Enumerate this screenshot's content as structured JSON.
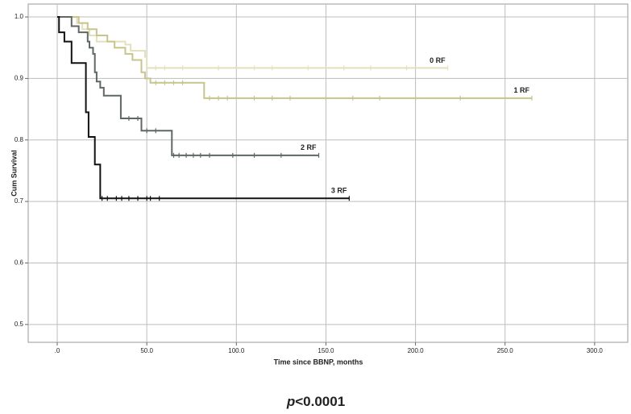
{
  "chart_data": {
    "type": "kaplan-meier",
    "xlabel": "Time since BBNP, months",
    "ylabel": "Cum Survival",
    "annotation_parts": [
      "p",
      "<0.0001"
    ],
    "xlim": [
      -16.2,
      318.5
    ],
    "ylim": [
      0.471,
      1.021
    ],
    "xticks": [
      {
        "value": 0,
        "label": ".0"
      },
      {
        "value": 50,
        "label": "50.0"
      },
      {
        "value": 100,
        "label": "100.0"
      },
      {
        "value": 150,
        "label": "150.0"
      },
      {
        "value": 200,
        "label": "200.0"
      },
      {
        "value": 250,
        "label": "250.0"
      },
      {
        "value": 300,
        "label": "300.0"
      }
    ],
    "yticks": [
      0.5,
      0.6,
      0.7,
      0.8,
      0.9,
      {
        "value": 1,
        "label": "1.0"
      }
    ],
    "grid": true,
    "series": [
      {
        "name": "0 RF",
        "color": "#e4e0bc",
        "x": [
          0,
          11,
          14,
          18,
          22,
          38,
          41,
          49,
          50,
          218
        ],
        "values": [
          1,
          0.99,
          0.98,
          0.97,
          0.96,
          0.955,
          0.945,
          0.935,
          0.917,
          0.917
        ],
        "censored": [
          55,
          60,
          70,
          90,
          110,
          120,
          140,
          160,
          175,
          195,
          218
        ]
      },
      {
        "name": "1 RF",
        "color": "#c8c48d",
        "x": [
          0,
          12,
          17,
          22,
          28,
          32,
          38,
          42,
          47,
          49,
          52,
          82,
          265
        ],
        "values": [
          1,
          0.99,
          0.98,
          0.97,
          0.96,
          0.95,
          0.94,
          0.93,
          0.91,
          0.9,
          0.893,
          0.868,
          0.868
        ],
        "censored": [
          55,
          60,
          65,
          70,
          85,
          90,
          95,
          110,
          120,
          130,
          150,
          165,
          180,
          200,
          225,
          265
        ]
      },
      {
        "name": "2 RF",
        "color": "#5f6864",
        "x": [
          0,
          8,
          12,
          17,
          18,
          20,
          21,
          22,
          24,
          26,
          35.5,
          47,
          64,
          146
        ],
        "values": [
          1,
          0.985,
          0.975,
          0.96,
          0.95,
          0.94,
          0.91,
          0.895,
          0.885,
          0.872,
          0.835,
          0.815,
          0.775,
          0.775
        ],
        "censored": [
          40,
          45,
          50,
          55,
          65,
          68,
          72,
          76,
          80,
          85,
          98,
          110,
          125,
          146
        ]
      },
      {
        "name": "3 RF",
        "color": "#111111",
        "x": [
          0,
          1,
          4,
          8,
          16,
          17.5,
          21,
          24,
          163
        ],
        "values": [
          1,
          0.975,
          0.96,
          0.925,
          0.845,
          0.805,
          0.76,
          0.705,
          0.705
        ],
        "censored": [
          25,
          28,
          33,
          36,
          40,
          45,
          50,
          52,
          57,
          163
        ]
      }
    ]
  }
}
